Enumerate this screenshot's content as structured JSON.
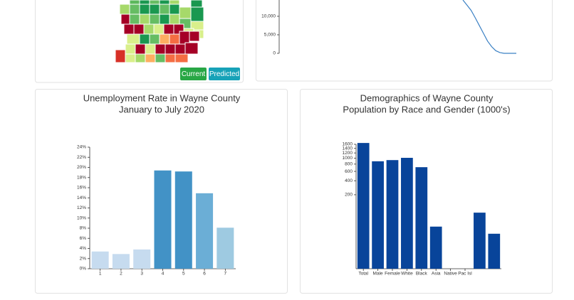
{
  "buttons": {
    "current": "Current",
    "predicted": "Predicted"
  },
  "chart_data": [
    {
      "type": "line",
      "color": "#3a80c4",
      "values": [
        14400,
        13000,
        11600,
        9600,
        7500,
        5400,
        3300,
        1800,
        700,
        200,
        0,
        0,
        0,
        0
      ],
      "ylim": [
        0,
        14400
      ],
      "yticks": [
        0,
        {
          "value": 5000,
          "label": "5,000"
        },
        {
          "value": 10000,
          "label": "10,000"
        }
      ]
    },
    {
      "type": "bar",
      "title": "Unemployment Rate in Wayne County",
      "subtitle": "January to July 2020",
      "categories": [
        "1",
        "2",
        "3",
        "4",
        "5",
        "6",
        "7"
      ],
      "values": [
        3.4,
        2.9,
        3.8,
        19.4,
        19.2,
        14.9,
        8.1
      ],
      "colors": [
        "#c6dbef",
        "#c6dbef",
        "#c6dbef",
        "#4292c6",
        "#4292c6",
        "#6baed6",
        "#9ecae1"
      ],
      "ylim": [
        0,
        24
      ],
      "yticks": [
        {
          "value": 0,
          "label": "0%"
        },
        {
          "value": 2,
          "label": "2%"
        },
        {
          "value": 4,
          "label": "4%"
        },
        {
          "value": 6,
          "label": "6%"
        },
        {
          "value": 8,
          "label": "8%"
        },
        {
          "value": 10,
          "label": "10%"
        },
        {
          "value": 12,
          "label": "12%"
        },
        {
          "value": 14,
          "label": "14%"
        },
        {
          "value": 16,
          "label": "16%"
        },
        {
          "value": 18,
          "label": "18%"
        },
        {
          "value": 20,
          "label": "20%"
        },
        {
          "value": 22,
          "label": "22%"
        },
        {
          "value": 24,
          "label": "24%"
        }
      ]
    },
    {
      "type": "bar",
      "title": "Demographics of Wayne County",
      "subtitle": "Population by Race and Gender (1000's)",
      "categories": [
        "Total",
        "Male",
        "Female",
        "White",
        "Black",
        "Asia",
        "Native",
        "Pac Isl",
        null,
        null
      ],
      "values": [
        1670,
        890,
        930,
        1010,
        710,
        21,
        0,
        0,
        66,
        10
      ],
      "color": "#08449a",
      "scale": "pow",
      "exponent": 0.25,
      "ylim": [
        0,
        1600
      ],
      "yticks": [
        200,
        400,
        600,
        800,
        1000,
        1200,
        1400,
        1600
      ]
    }
  ]
}
